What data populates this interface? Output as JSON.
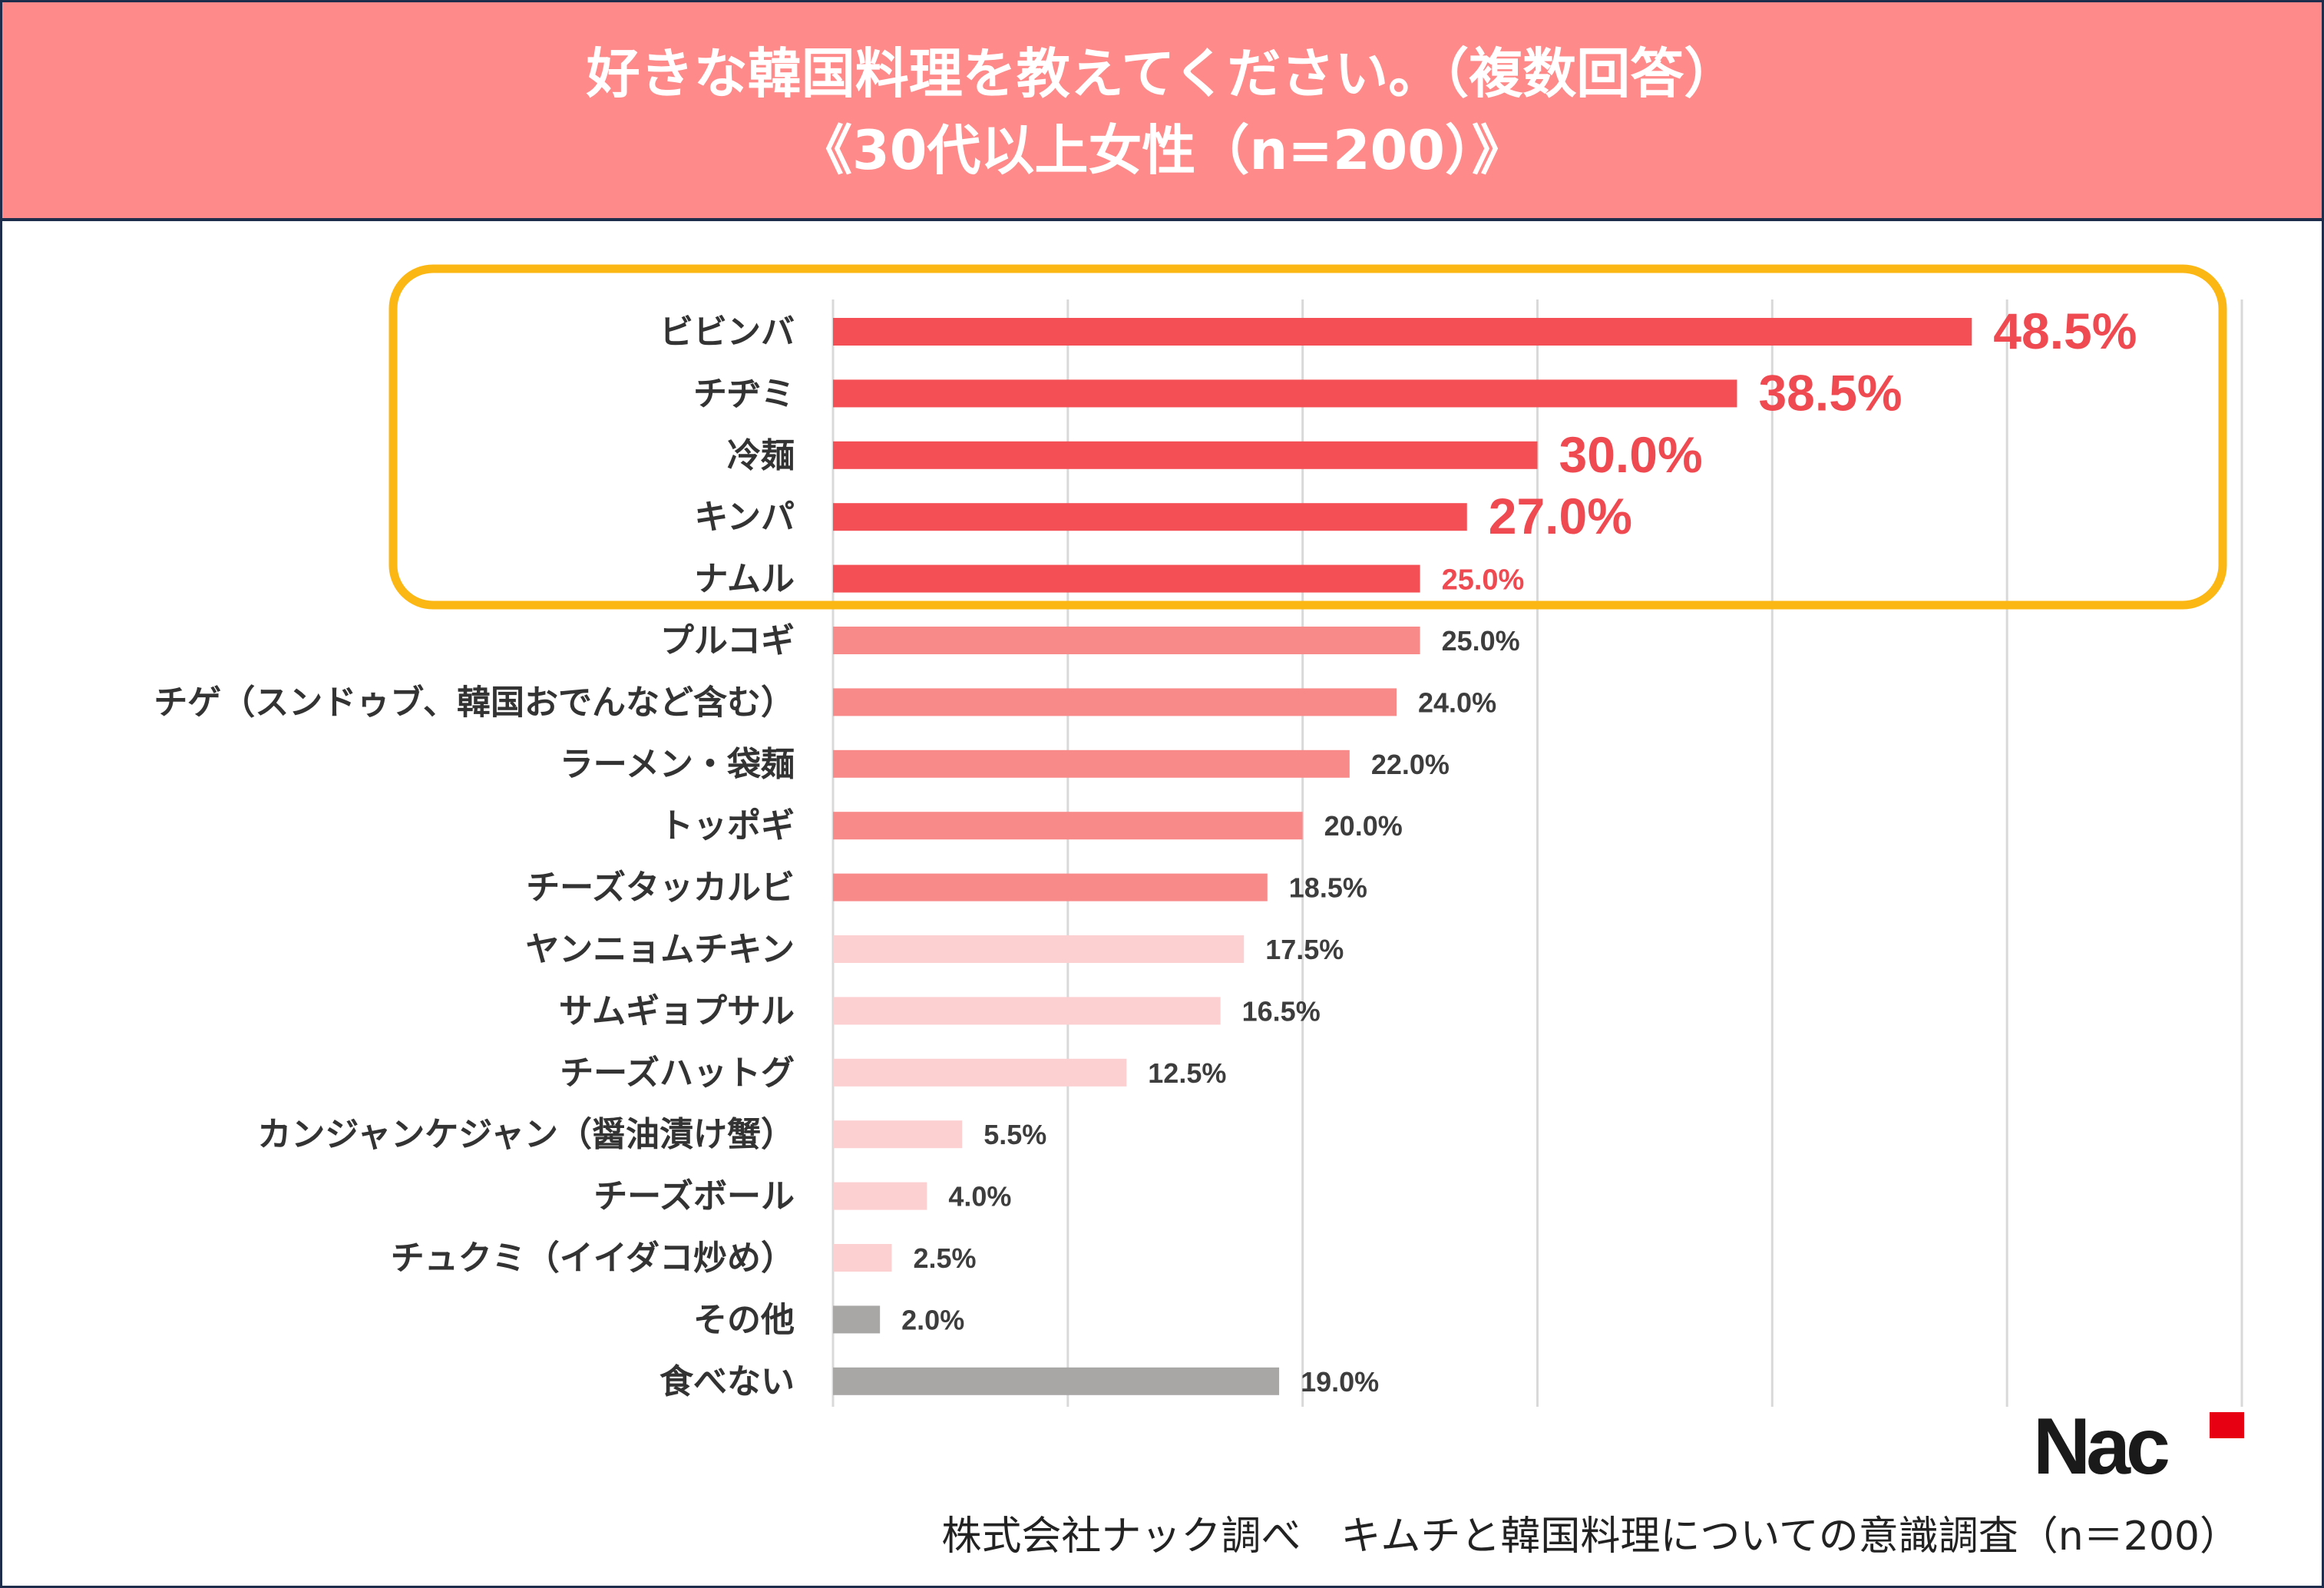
{
  "header": {
    "title": "好きな韓国料理を教えてください。（複数回答）",
    "subtitle": "《30代以上女性（n=200）》"
  },
  "chart_data": {
    "type": "bar",
    "orientation": "horizontal",
    "title": "好きな韓国料理を教えてください。（複数回答）",
    "subtitle": "《30代以上女性（n=200）》",
    "xlim": [
      0,
      60
    ],
    "grid": true,
    "value_suffix": "%",
    "categories": [
      "ビビンバ",
      "チヂミ",
      "冷麺",
      "キンパ",
      "ナムル",
      "プルコギ",
      "チゲ（スンドゥブ、韓国おでんなど含む）",
      "ラーメン・袋麺",
      "トッポギ",
      "チーズタッカルビ",
      "ヤンニョムチキン",
      "サムギョプサル",
      "チーズハットグ",
      "カンジャンケジャン（醤油漬け蟹）",
      "チーズボール",
      "チュクミ（イイダコ炒め）",
      "その他",
      "食べない"
    ],
    "values": [
      48.5,
      38.5,
      30.0,
      27.0,
      25.0,
      25.0,
      24.0,
      22.0,
      20.0,
      18.5,
      17.5,
      16.5,
      12.5,
      5.5,
      4.0,
      2.5,
      2.0,
      19.0
    ],
    "value_labels": [
      "48.5%",
      "38.5%",
      "30.0%",
      "27.0%",
      "25.0%",
      "25.0%",
      "24.0%",
      "22.0%",
      "20.0%",
      "18.5%",
      "17.5%",
      "16.5%",
      "12.5%",
      "5.5%",
      "4.0%",
      "2.5%",
      "2.0%",
      "19.0%"
    ],
    "highlight": "top 5 items outlined",
    "colors": {
      "top5": "#f34f54",
      "mid": "#f98a8a",
      "low": "#fccfd1",
      "other": "#a9a6a6",
      "highlight_box": "#fbb714",
      "top_label": "#ef4a51",
      "label": "#3d3d3d",
      "grid": "#d9d9d9"
    }
  },
  "logo": {
    "text": "Nac"
  },
  "footer": {
    "source": "株式会社ナック調べ　キムチと韓国料理についての意識調査（n＝200）"
  }
}
